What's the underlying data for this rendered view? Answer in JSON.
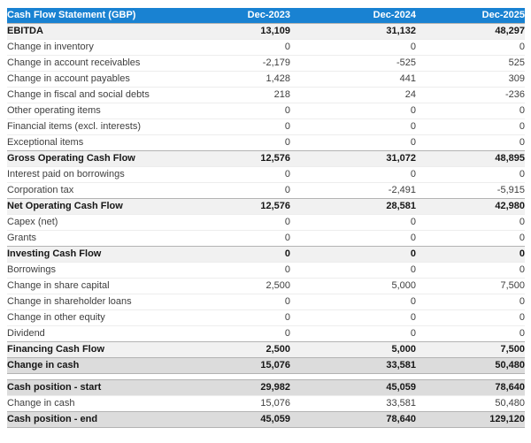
{
  "chart_data": {
    "type": "table",
    "title": "Cash Flow Statement (GBP)",
    "currency": "GBP",
    "columns": [
      "Dec-2023",
      "Dec-2024",
      "Dec-2025"
    ],
    "rows": [
      {
        "label": "EBITDA",
        "values": [
          "13,109",
          "31,132",
          "48,297"
        ],
        "type": "subtotal"
      },
      {
        "label": "Change in inventory",
        "values": [
          "0",
          "0",
          "0"
        ],
        "type": "regular"
      },
      {
        "label": "Change in account receivables",
        "values": [
          "-2,179",
          "-525",
          "525"
        ],
        "type": "regular"
      },
      {
        "label": "Change in account payables",
        "values": [
          "1,428",
          "441",
          "309"
        ],
        "type": "regular"
      },
      {
        "label": "Change in fiscal and social debts",
        "values": [
          "218",
          "24",
          "-236"
        ],
        "type": "regular"
      },
      {
        "label": "Other operating items",
        "values": [
          "0",
          "0",
          "0"
        ],
        "type": "regular"
      },
      {
        "label": "Financial items (excl. interests)",
        "values": [
          "0",
          "0",
          "0"
        ],
        "type": "regular"
      },
      {
        "label": "Exceptional items",
        "values": [
          "0",
          "0",
          "0"
        ],
        "type": "regular"
      },
      {
        "label": "Gross Operating Cash Flow",
        "values": [
          "12,576",
          "31,072",
          "48,895"
        ],
        "type": "subtotal"
      },
      {
        "label": "Interest paid on borrowings",
        "values": [
          "0",
          "0",
          "0"
        ],
        "type": "regular"
      },
      {
        "label": "Corporation tax",
        "values": [
          "0",
          "-2,491",
          "-5,915"
        ],
        "type": "regular"
      },
      {
        "label": "Net Operating Cash Flow",
        "values": [
          "12,576",
          "28,581",
          "42,980"
        ],
        "type": "subtotal"
      },
      {
        "label": "Capex (net)",
        "values": [
          "0",
          "0",
          "0"
        ],
        "type": "regular"
      },
      {
        "label": "Grants",
        "values": [
          "0",
          "0",
          "0"
        ],
        "type": "regular"
      },
      {
        "label": "Investing Cash Flow",
        "values": [
          "0",
          "0",
          "0"
        ],
        "type": "subtotal"
      },
      {
        "label": "Borrowings",
        "values": [
          "0",
          "0",
          "0"
        ],
        "type": "regular"
      },
      {
        "label": "Change in share capital",
        "values": [
          "2,500",
          "5,000",
          "7,500"
        ],
        "type": "regular"
      },
      {
        "label": "Change in shareholder loans",
        "values": [
          "0",
          "0",
          "0"
        ],
        "type": "regular"
      },
      {
        "label": "Change in other equity",
        "values": [
          "0",
          "0",
          "0"
        ],
        "type": "regular"
      },
      {
        "label": "Dividend",
        "values": [
          "0",
          "0",
          "0"
        ],
        "type": "regular"
      },
      {
        "label": "Financing Cash Flow",
        "values": [
          "2,500",
          "5,000",
          "7,500"
        ],
        "type": "subtotal"
      },
      {
        "label": "Change in cash",
        "values": [
          "15,076",
          "33,581",
          "50,480"
        ],
        "type": "total"
      },
      {
        "type": "spacer"
      },
      {
        "label": "Cash position - start",
        "values": [
          "29,982",
          "45,059",
          "78,640"
        ],
        "type": "total"
      },
      {
        "label": "Change in cash",
        "values": [
          "15,076",
          "33,581",
          "50,480"
        ],
        "type": "regular"
      },
      {
        "label": "Cash position - end",
        "values": [
          "45,059",
          "78,640",
          "129,120"
        ],
        "type": "total"
      }
    ],
    "colors": {
      "header_bg": "#1982d2",
      "header_text": "#ffffff",
      "subtotal_row_bg": "#f1f1f1",
      "total_row_bg": "#dcdcdc",
      "regular_row_bg": "#ffffff"
    }
  }
}
